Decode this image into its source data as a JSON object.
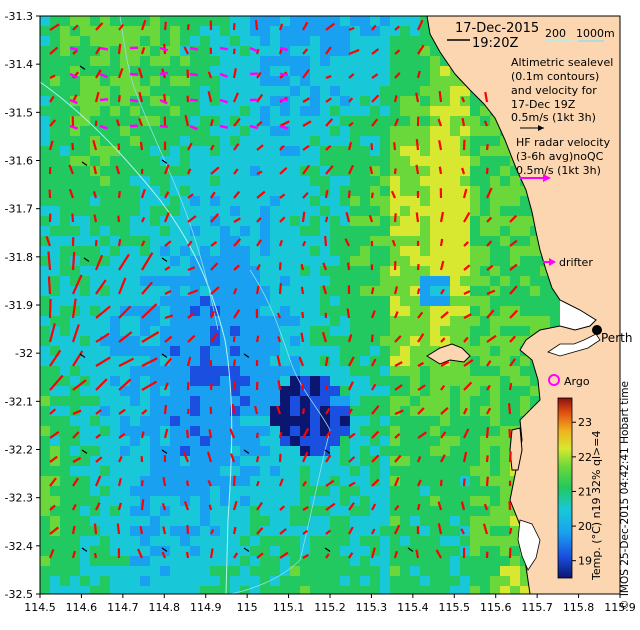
{
  "header": {
    "date": "17-Dec-2015",
    "time": "19:20Z",
    "bathy_labels": [
      "200",
      "1000m"
    ]
  },
  "legend": {
    "altimetry_lines": [
      "Altimetric sealevel",
      "(0.1m contours)",
      "and velocity for",
      "17-Dec 19Z",
      "0.5m/s (1kt 3h)"
    ],
    "hf_lines": [
      "HF radar velocity",
      "(3-6h avg)noQC",
      "0.5m/s (1kt 3h)"
    ],
    "drifter_label": "drifter",
    "argo_label": "Argo",
    "city_label": "Perth",
    "right_caption": "© IMOS 25-Dec-2015 04:42:41 Hobart time",
    "colorbar_caption": "Temp. (°C) n19 32% ql>=4"
  },
  "axes": {
    "x_ticks": [
      "114.5",
      "114.6",
      "114.7",
      "114.8",
      "114.9",
      "115",
      "115.1",
      "115.2",
      "115.3",
      "115.4",
      "115.5",
      "115.6",
      "115.7",
      "115.8",
      "115.9"
    ],
    "y_ticks": [
      "-31.3",
      "-31.4",
      "-31.5",
      "-31.6",
      "-31.7",
      "-31.8",
      "-31.9",
      "-32",
      "-32.1",
      "-32.2",
      "-32.3",
      "-32.4",
      "-32.5"
    ],
    "lon_range": [
      114.5,
      115.9
    ],
    "lat_range": [
      -32.5,
      -31.3
    ]
  },
  "colorbar": {
    "ticks": [
      "23",
      "22",
      "21",
      "20",
      "19"
    ],
    "range": [
      18.5,
      23.7
    ]
  },
  "colors": {
    "land": "#fcd6b0",
    "hf_vector": "#ff00ff",
    "alt_vector": "#ff0000",
    "bathy_contour": "#a8f0f0",
    "argo": "#ff00ff"
  }
}
